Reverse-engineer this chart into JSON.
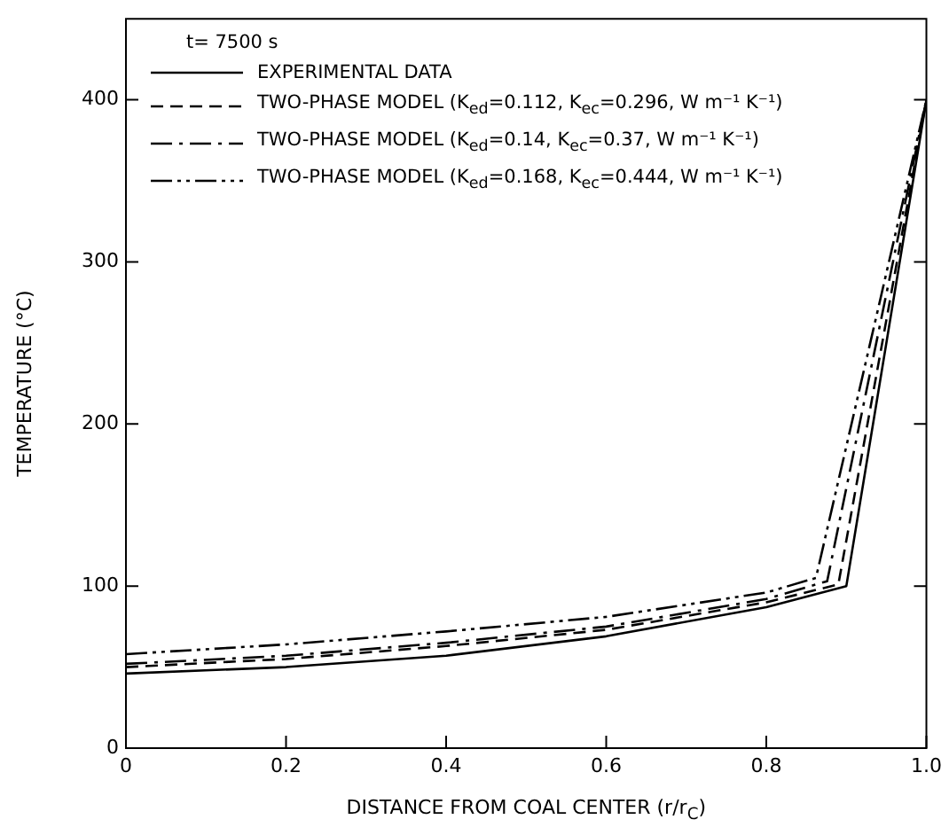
{
  "chart_data": {
    "type": "line",
    "xlabel": "DISTANCE FROM COAL CENTER (r/r$_{C}$)",
    "ylabel": "TEMPERATURE (°C)",
    "legend_title": "t= 7500 s",
    "legend": "top left",
    "grid": false,
    "marker": "none",
    "xlim": [
      0,
      1
    ],
    "xticks": [
      {
        "value": 0,
        "label": "0"
      },
      0.2,
      0.4,
      0.6,
      0.8,
      {
        "value": 1,
        "label": "1.0"
      }
    ],
    "ylim": [
      0,
      450
    ],
    "yticks": [
      0,
      100,
      200,
      300,
      400
    ],
    "series": [
      {
        "name": "EXPERIMENTAL DATA",
        "color": "#000000",
        "line_style": "solid",
        "x": [
          0,
          0.2,
          0.4,
          0.6,
          0.8,
          0.9,
          1.0
        ],
        "values": [
          46,
          50,
          57,
          69,
          87,
          100,
          400
        ]
      },
      {
        "name": "TWO-PHASE MODEL (K$_{ed}$=0.112, K$_{ec}$=0.296, W m⁻¹ K⁻¹)",
        "color": "#000000",
        "line_style": "dashed",
        "x": [
          0,
          0.2,
          0.4,
          0.6,
          0.8,
          0.89,
          1.0
        ],
        "values": [
          50,
          55,
          63,
          73,
          90,
          101,
          400
        ]
      },
      {
        "name": "TWO-PHASE MODEL (K$_{ed}$=0.14, K$_{ec}$=0.37, W m⁻¹ K⁻¹)",
        "color": "#000000",
        "line_style": "dashdot",
        "x": [
          0,
          0.2,
          0.4,
          0.6,
          0.8,
          0.876,
          1.0
        ],
        "values": [
          52,
          57,
          65,
          75,
          92,
          103,
          400
        ]
      },
      {
        "name": "TWO-PHASE MODEL (K$_{ed}$=0.168, K$_{ec}$=0.444, W m⁻¹ K⁻¹)",
        "color": "#000000",
        "line_style": "dashdotdot",
        "x": [
          0,
          0.2,
          0.4,
          0.6,
          0.8,
          0.862,
          1.0
        ],
        "values": [
          58,
          64,
          72,
          81,
          96,
          105,
          400
        ]
      }
    ]
  }
}
